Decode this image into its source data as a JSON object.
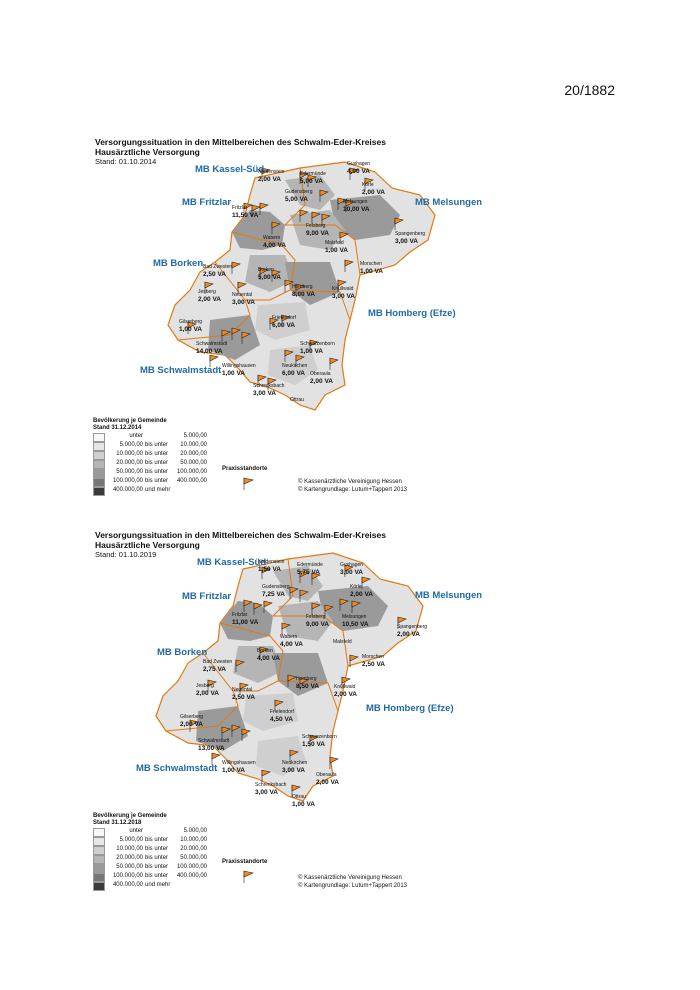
{
  "page_number": "20/1882",
  "colors": {
    "accent_blue": "#1f6aa5",
    "flag_orange": "#f28a1e",
    "border_orange": "#e07a10",
    "shade": [
      "#f7f7f7",
      "#e6e6e6",
      "#cfcfcf",
      "#b5b5b5",
      "#9a9a9a",
      "#777777",
      "#3a3a3a"
    ]
  },
  "maps": [
    {
      "title": "Versorgungssituation in den Mittelbereichen des Schwalm-Eder-Kreises",
      "subtitle": "Hausärztliche Versorgung",
      "stand": "Stand: 01.10.2014",
      "regions": [
        "MB Kassel-Süd",
        "MB Fritzlar",
        "MB Melsungen",
        "MB Borken",
        "MB Homberg (Efze)",
        "MB Schwalmstadt"
      ],
      "towns": [
        {
          "name": "Guxhagen",
          "va": "4,00 VA"
        },
        {
          "name": "Niedenstein",
          "va": "2,00 VA"
        },
        {
          "name": "Edermünde",
          "va": "5,00 VA"
        },
        {
          "name": "Körle",
          "va": "2,00 VA"
        },
        {
          "name": "Gudensberg",
          "va": "5,00 VA"
        },
        {
          "name": "Fritzlar",
          "va": "11,50 VA"
        },
        {
          "name": "Melsungen",
          "va": "10,00 VA"
        },
        {
          "name": "Felsberg",
          "va": "9,00 VA"
        },
        {
          "name": "Spangenberg",
          "va": "3,00 VA"
        },
        {
          "name": "Wabern",
          "va": "4,00 VA"
        },
        {
          "name": "Malsfeld",
          "va": "1,00 VA"
        },
        {
          "name": "Bad Zwesten",
          "va": "2,50 VA"
        },
        {
          "name": "Borken",
          "va": "5,00 VA"
        },
        {
          "name": "Morschen",
          "va": "1,00 VA"
        },
        {
          "name": "Jesberg",
          "va": "2,00 VA"
        },
        {
          "name": "Neuental",
          "va": "3,00 VA"
        },
        {
          "name": "Homberg",
          "va": "8,00 VA"
        },
        {
          "name": "Knüllwald",
          "va": "3,00 VA"
        },
        {
          "name": "Gilserberg",
          "va": "1,00 VA"
        },
        {
          "name": "Frielendorf",
          "va": "6,00 VA"
        },
        {
          "name": "Schwalmstadt",
          "va": "14,00 VA"
        },
        {
          "name": "Schwarzenborn",
          "va": "1,00 VA"
        },
        {
          "name": "Willingshausen",
          "va": "1,00 VA"
        },
        {
          "name": "Neukirchen",
          "va": "6,00 VA"
        },
        {
          "name": "Oberaula",
          "va": "2,00 VA"
        },
        {
          "name": "Schrecksbach",
          "va": "3,00 VA"
        },
        {
          "name": "Ottrau",
          "va": ""
        }
      ],
      "legend": {
        "title": "Bevölkerung je Gemeinde",
        "stand": "Stand 31.12.2014",
        "rows": [
          {
            "a": "unter",
            "b": "",
            "c": "5.000,00"
          },
          {
            "a": "5.000,00",
            "b": "bis unter",
            "c": "10.000,00"
          },
          {
            "a": "10.000,00",
            "b": "bis unter",
            "c": "20.000,00"
          },
          {
            "a": "20.000,00",
            "b": "bis unter",
            "c": "50.000,00"
          },
          {
            "a": "50.000,00",
            "b": "bis unter",
            "c": "100.000,00"
          },
          {
            "a": "100.000,00",
            "b": "bis unter",
            "c": "400.000,00"
          },
          {
            "a": "400.000,00",
            "b": "und mehr",
            "c": ""
          }
        ]
      },
      "praxis_label": "Praxisstandorte",
      "credits": [
        "© Kassenärztliche Vereinigung Hessen",
        "© Kartengrundlage: Lutum+Tappert 2013"
      ]
    },
    {
      "title": "Versorgungssituation in den Mittelbereichen des Schwalm-Eder-Kreises",
      "subtitle": "Hausärztliche Versorgung",
      "stand": "Stand: 01.10.2019",
      "regions": [
        "MB Kassel-Süd",
        "MB Fritzlar",
        "MB Melsungen",
        "MB Borken",
        "MB Homberg (Efze)",
        "MB Schwalmstadt"
      ],
      "towns": [
        {
          "name": "Niedenstein",
          "va": "1,50 VA"
        },
        {
          "name": "Edermünde",
          "va": "5,75 VA"
        },
        {
          "name": "Guxhagen",
          "va": "3,00 VA"
        },
        {
          "name": "Gudensberg",
          "va": "7,25 VA"
        },
        {
          "name": "Körle",
          "va": "2,00 VA"
        },
        {
          "name": "Fritzlar",
          "va": "11,00 VA"
        },
        {
          "name": "Felsberg",
          "va": "9,00 VA"
        },
        {
          "name": "Melsungen",
          "va": "10,50 VA"
        },
        {
          "name": "Spangenberg",
          "va": "2,00 VA"
        },
        {
          "name": "Wabern",
          "va": "4,00 VA"
        },
        {
          "name": "Malsfeld",
          "va": ""
        },
        {
          "name": "Bad Zwesten",
          "va": "2,75 VA"
        },
        {
          "name": "Borken",
          "va": "4,00 VA"
        },
        {
          "name": "Morschen",
          "va": "2,50 VA"
        },
        {
          "name": "Jesberg",
          "va": "2,00 VA"
        },
        {
          "name": "Neuental",
          "va": "2,50 VA"
        },
        {
          "name": "Homberg",
          "va": "8,50 VA"
        },
        {
          "name": "Knüllwald",
          "va": "2,00 VA"
        },
        {
          "name": "Gilserberg",
          "va": "2,00 VA"
        },
        {
          "name": "Frielendorf",
          "va": "4,50 VA"
        },
        {
          "name": "Schwalmstadt",
          "va": "13,00 VA"
        },
        {
          "name": "Schwarzenborn",
          "va": "1,50 VA"
        },
        {
          "name": "Willingshausen",
          "va": "1,00 VA"
        },
        {
          "name": "Neukirchen",
          "va": "3,00 VA"
        },
        {
          "name": "Oberaula",
          "va": "2,00 VA"
        },
        {
          "name": "Schrecksbach",
          "va": "3,00 VA"
        },
        {
          "name": "Ottrau",
          "va": "1,00 VA"
        }
      ],
      "legend": {
        "title": "Bevölkerung je Gemeinde",
        "stand": "Stand 31.12.2018",
        "rows": [
          {
            "a": "unter",
            "b": "",
            "c": "5.000,00"
          },
          {
            "a": "5.000,00",
            "b": "bis unter",
            "c": "10.000,00"
          },
          {
            "a": "10.000,00",
            "b": "bis unter",
            "c": "20.000,00"
          },
          {
            "a": "20.000,00",
            "b": "bis unter",
            "c": "50.000,00"
          },
          {
            "a": "50.000,00",
            "b": "bis unter",
            "c": "100.000,00"
          },
          {
            "a": "100.000,00",
            "b": "bis unter",
            "c": "400.000,00"
          },
          {
            "a": "400.000,00",
            "b": "und mehr",
            "c": ""
          }
        ]
      },
      "praxis_label": "Praxisstandorte",
      "credits": [
        "© Kassenärztliche Vereinigung Hessen",
        "© Kartengrundlage: Lutum+Tappert 2013"
      ]
    }
  ]
}
